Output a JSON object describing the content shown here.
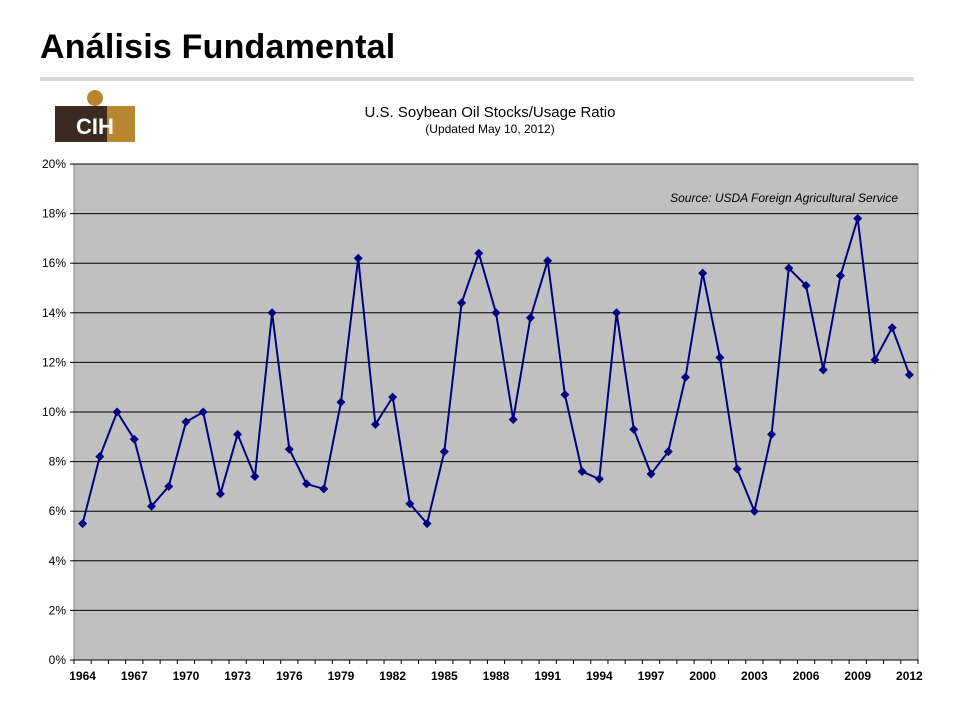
{
  "slide": {
    "title": "Análisis Fundamental"
  },
  "logo": {
    "text": "CIH"
  },
  "colors": {
    "plot_background": "#c0c0c0",
    "series": "#000080",
    "gridline": "#000000",
    "logo_dark": "#3a2a22",
    "logo_gold": "#b8862f"
  },
  "chart_data": {
    "type": "line",
    "title": "U.S. Soybean Oil Stocks/Usage Ratio",
    "subtitle": "(Updated May 10, 2012)",
    "annotation": "Source: USDA Foreign Agricultural Service",
    "xlabel": "",
    "ylabel": "",
    "ylim": [
      0,
      20
    ],
    "xlim": [
      1964,
      2012
    ],
    "y_ticks": [
      "0%",
      "2%",
      "4%",
      "6%",
      "8%",
      "10%",
      "12%",
      "14%",
      "16%",
      "18%",
      "20%"
    ],
    "x_ticks": [
      "1964",
      "1967",
      "1970",
      "1973",
      "1976",
      "1979",
      "1982",
      "1985",
      "1988",
      "1991",
      "1994",
      "1997",
      "2000",
      "2003",
      "2006",
      "2009",
      "2012"
    ],
    "grid": true,
    "legend": "none",
    "series": [
      {
        "x": [
          1964,
          1965,
          1966,
          1967,
          1968,
          1969,
          1970,
          1971,
          1972,
          1973,
          1974,
          1975,
          1976,
          1977,
          1978,
          1979,
          1980,
          1981,
          1982,
          1983,
          1984,
          1985,
          1986,
          1987,
          1988,
          1989,
          1990,
          1991,
          1992,
          1993,
          1994,
          1995,
          1996,
          1997,
          1998,
          1999,
          2000,
          2001,
          2002,
          2003,
          2004,
          2005,
          2006,
          2007,
          2008,
          2009,
          2010,
          2011,
          2012
        ],
        "values": [
          5.5,
          8.2,
          10.0,
          8.9,
          6.2,
          7.0,
          9.6,
          10.0,
          6.7,
          9.1,
          7.4,
          14.0,
          8.5,
          7.1,
          6.9,
          10.4,
          16.2,
          9.5,
          10.6,
          6.3,
          5.5,
          8.4,
          14.4,
          16.4,
          14.0,
          9.7,
          13.8,
          16.1,
          10.7,
          7.6,
          7.3,
          14.0,
          9.3,
          7.5,
          8.4,
          11.4,
          15.6,
          12.2,
          7.7,
          6.0,
          9.1,
          15.8,
          15.1,
          11.7,
          15.5,
          17.8,
          12.1,
          13.4,
          11.5
        ]
      }
    ]
  }
}
